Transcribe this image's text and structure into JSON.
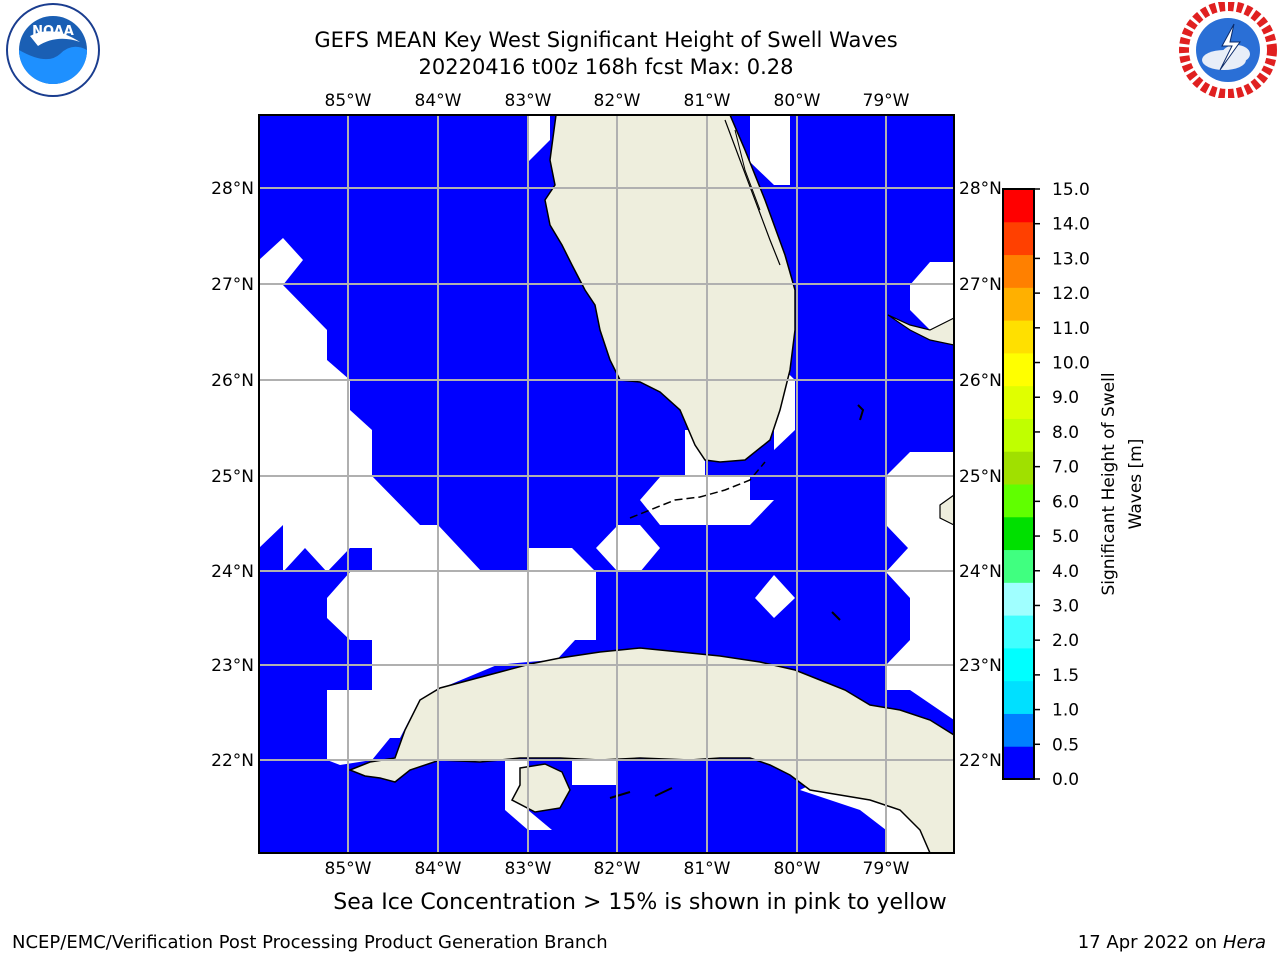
{
  "header": {
    "title_line1": "GEFS MEAN Key West Significant Height of Swell Waves",
    "title_line2": "20220416 t00z 168h fcst   Max: 0.28"
  },
  "logos": {
    "left": {
      "text": "NOAA",
      "ring_text": "NATIONAL OCEANIC AND ATMOSPHERIC ADMINISTRATION · U.S. DEPARTMENT OF COMMERCE"
    },
    "right": {
      "ring_text": "NATIONAL WEATHER SERVICE"
    }
  },
  "map": {
    "lon_labels": [
      "85°W",
      "84°W",
      "83°W",
      "82°W",
      "81°W",
      "80°W",
      "79°W"
    ],
    "lat_labels": [
      "28°N",
      "27°N",
      "26°N",
      "25°N",
      "24°N",
      "23°N",
      "22°N"
    ],
    "water_color": "#0000ff",
    "land_color": "#eeeedd",
    "grid_color": "#b0b0b0"
  },
  "colorbar": {
    "label": "Significant Height of Swell Waves [m]",
    "ticks": [
      "15.0",
      "14.0",
      "13.0",
      "12.0",
      "11.0",
      "10.0",
      "9.0",
      "8.0",
      "7.0",
      "6.0",
      "5.0",
      "4.0",
      "3.0",
      "2.0",
      "1.5",
      "1.0",
      "0.5",
      "0.0"
    ],
    "colors_bottom_to_top": [
      "#0000ff",
      "#0080ff",
      "#00e0ff",
      "#00ffff",
      "#40ffff",
      "#a0ffff",
      "#40ff80",
      "#00e000",
      "#60ff00",
      "#a0e000",
      "#c0ff00",
      "#e0ff00",
      "#ffff00",
      "#ffe000",
      "#ffb000",
      "#ff8000",
      "#ff4000",
      "#ff0000"
    ]
  },
  "note": "Sea Ice Concentration > 15% is shown in pink to yellow",
  "footer": {
    "left": "NCEP/EMC/Verification Post Processing Product Generation Branch",
    "right_prefix": "17 Apr 2022 on ",
    "right_host": "Hera"
  }
}
